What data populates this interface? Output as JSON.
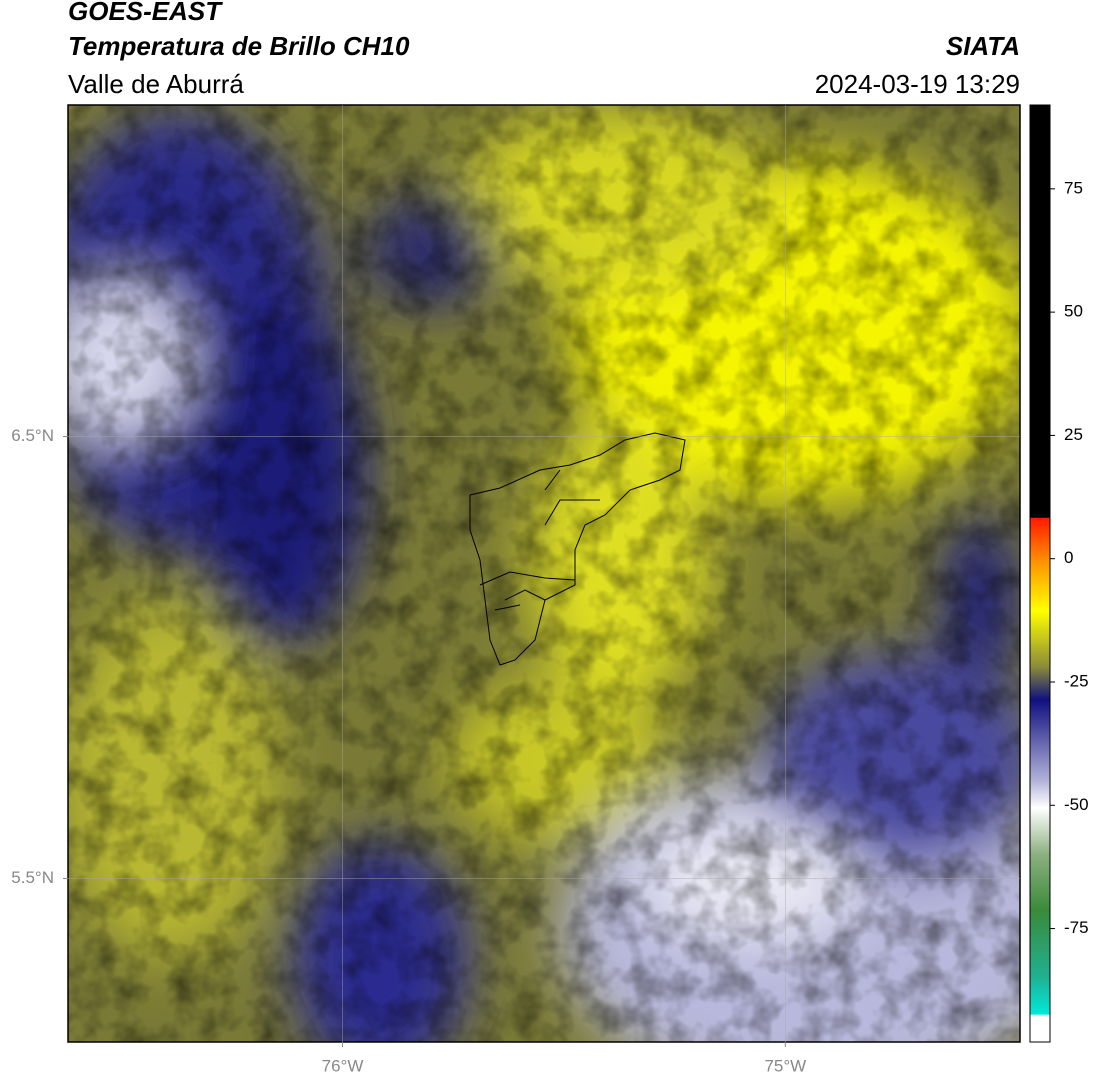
{
  "header": {
    "title": "GOES-EAST",
    "subtitle": "Temperatura de Brillo CH10",
    "region": "Valle de Aburrá",
    "source": "SIATA",
    "datetime": "2024-03-19 13:29"
  },
  "map": {
    "lonlim": [
      -76.62,
      -74.47
    ],
    "latlim": [
      5.13,
      7.25
    ],
    "lonticks": [
      {
        "value": -76,
        "label": "76°W"
      },
      {
        "value": -75,
        "label": "75°W"
      }
    ],
    "latticks": [
      {
        "value": 6.5,
        "label": "6.5°N"
      },
      {
        "value": 5.5,
        "label": "5.5°N"
      }
    ],
    "grid": true
  },
  "colorbar": {
    "lim": [
      -98,
      92
    ],
    "ticks": [
      75,
      50,
      25,
      0,
      -25,
      -50,
      -75
    ]
  }
}
